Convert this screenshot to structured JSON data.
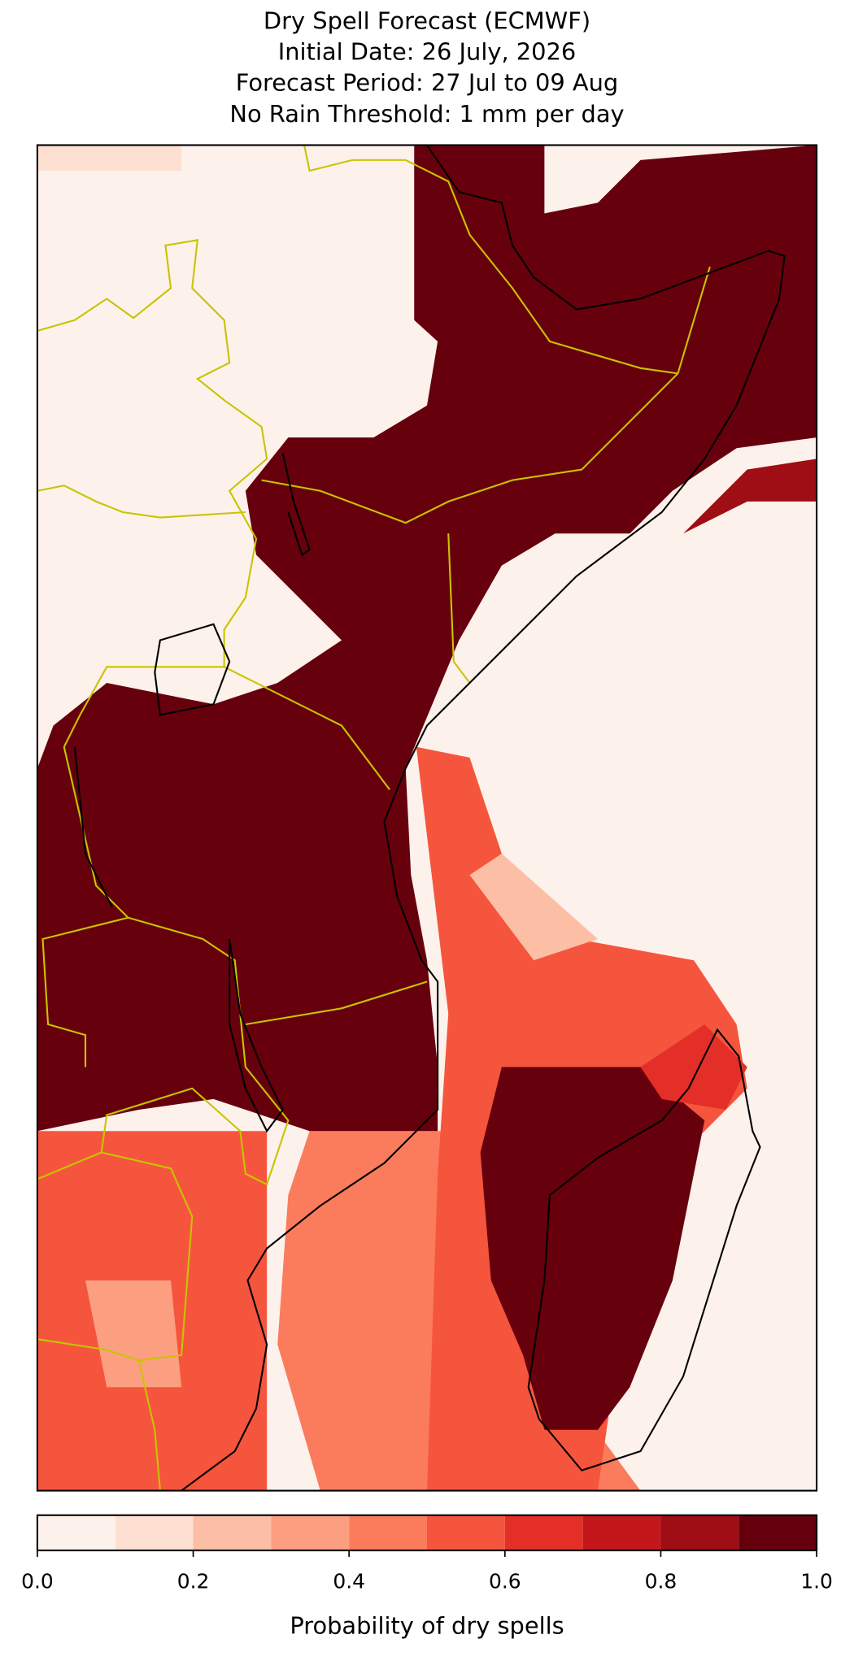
{
  "title": [
    "Dry Spell Forecast (ECMWF)",
    "Initial Date: 26 July, 2026",
    "Forecast Period: 27 Jul to 09 Aug",
    "No Rain Threshold: 1 mm per day"
  ],
  "colorbar": {
    "label": "Probability of dry spells",
    "lim": [
      0,
      1
    ],
    "bounds": [
      0,
      0.1,
      0.2,
      0.3,
      0.4,
      0.5,
      0.6,
      0.7,
      0.8,
      0.9,
      1
    ],
    "colors": [
      "#fdf1ec",
      "#fde0d2",
      "#fcbea5",
      "#fc9f81",
      "#fb7c5c",
      "#f5553d",
      "#e32f27",
      "#c2181c",
      "#9f0e14",
      "#67000d"
    ],
    "ticks": [
      {
        "value": 0,
        "label": "0.0"
      },
      {
        "value": 0.2,
        "label": "0.2"
      },
      {
        "value": 0.4,
        "label": "0.4"
      },
      {
        "value": 0.6,
        "label": "0.6"
      },
      {
        "value": 0.8,
        "label": "0.8"
      },
      {
        "value": 1,
        "label": "1.0"
      }
    ]
  }
}
